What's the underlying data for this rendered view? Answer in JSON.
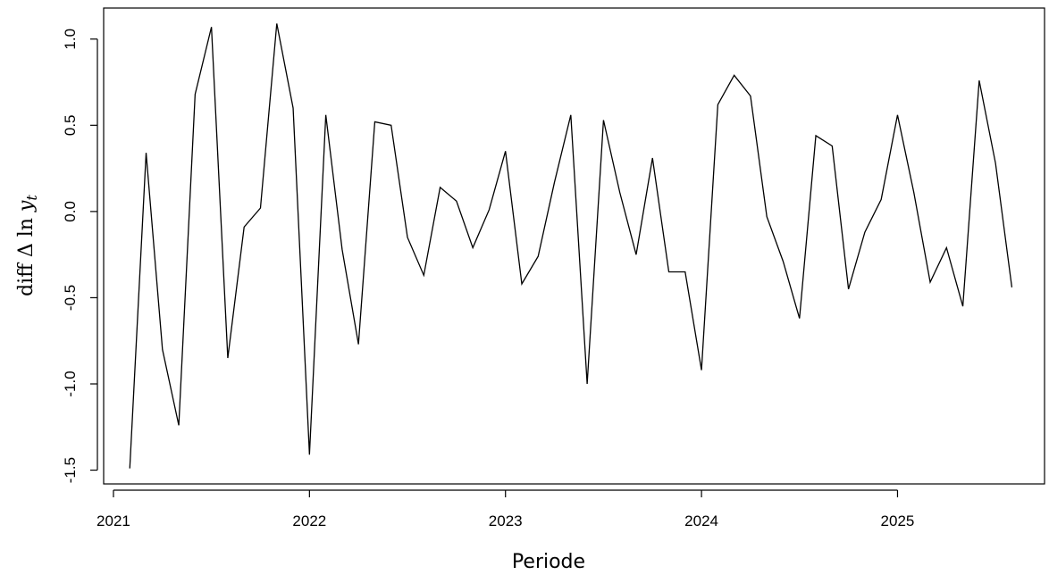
{
  "chart_data": {
    "type": "line",
    "xlabel": "Periode",
    "ylabel": {
      "prefix": "diff Δ ln ",
      "var": "y",
      "sub": "t"
    },
    "xlim": [
      2020.95,
      2025.75
    ],
    "ylim": [
      -1.58,
      1.18
    ],
    "x_ticks": [
      2021,
      2022,
      2023,
      2024,
      2025
    ],
    "x_tick_labels": [
      "2021",
      "2022",
      "2023",
      "2024",
      "2025"
    ],
    "y_ticks": [
      -1.5,
      -1.0,
      -0.5,
      0.0,
      0.5,
      1.0
    ],
    "y_tick_labels": [
      "-1.5",
      "-1.0",
      "-0.5",
      "0.0",
      "0.5",
      "1.0"
    ],
    "grid": false,
    "legend": "none",
    "line_color": "#000000",
    "series": [
      {
        "x_start": 2021.0833,
        "x_step": 0.083333,
        "values": [
          -1.49,
          0.34,
          -0.8,
          -1.24,
          0.68,
          1.07,
          -0.85,
          -0.09,
          0.02,
          1.09,
          0.6,
          -1.41,
          0.56,
          -0.22,
          -0.77,
          0.52,
          0.5,
          -0.15,
          -0.37,
          0.14,
          0.06,
          -0.21,
          0.01,
          0.35,
          -0.42,
          -0.26,
          0.17,
          0.56,
          -1.0,
          0.53,
          0.11,
          -0.25,
          0.31,
          -0.35,
          -0.35,
          -0.92,
          0.62,
          0.79,
          0.67,
          -0.03,
          -0.29,
          -0.62,
          0.44,
          0.38,
          -0.45,
          -0.12,
          0.07,
          0.56,
          0.11,
          -0.41,
          -0.21,
          -0.55,
          0.76,
          0.28,
          -0.44
        ]
      }
    ]
  }
}
